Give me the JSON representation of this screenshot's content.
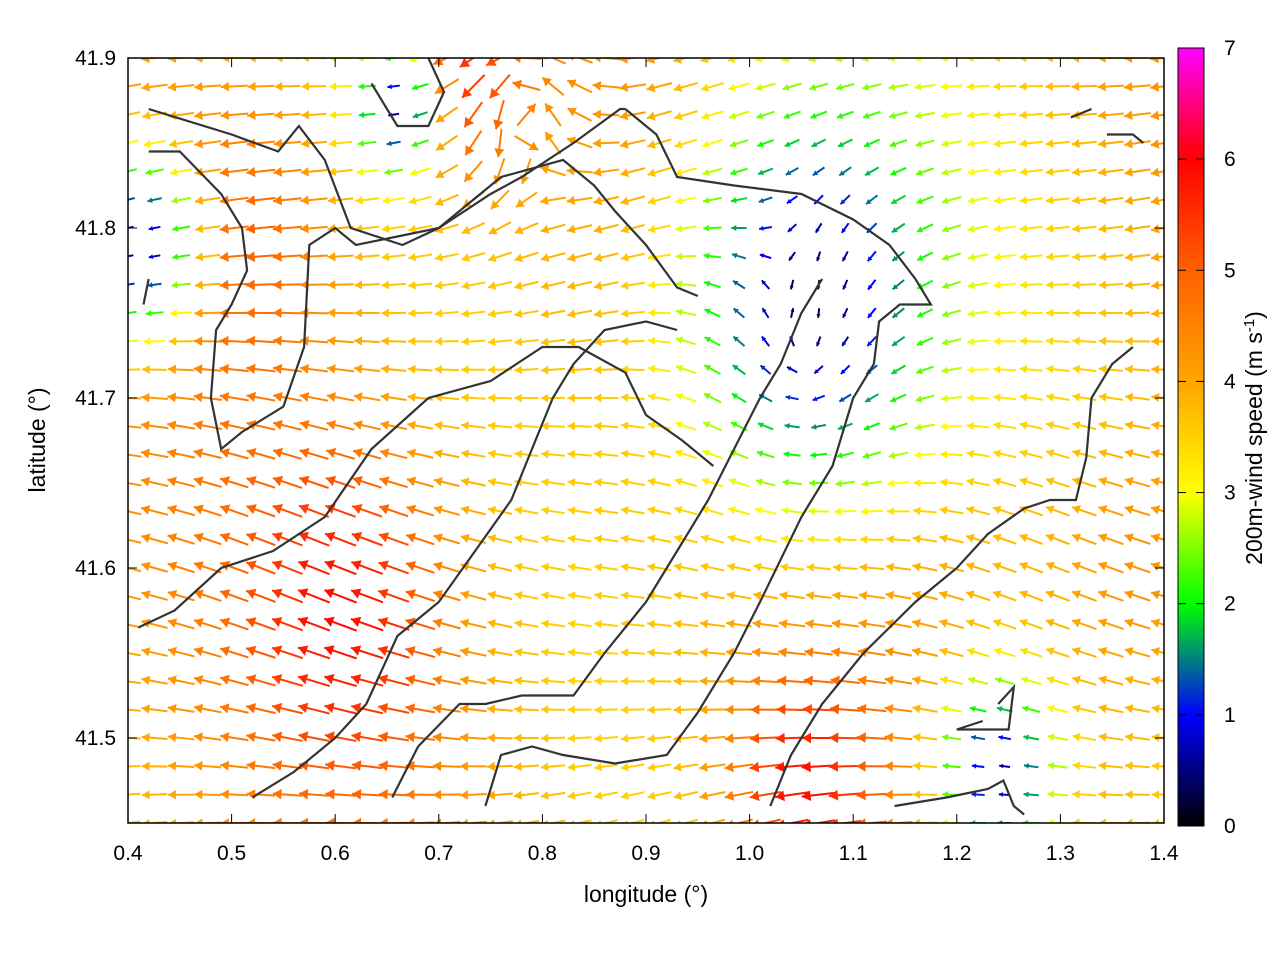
{
  "chart_data": {
    "type": "vector-field",
    "xlabel": "longitude (°)",
    "ylabel": "latitude (°)",
    "xlim": [
      0.4,
      1.4
    ],
    "ylim": [
      41.45,
      41.9
    ],
    "xticks": [
      {
        "v": 0.4,
        "label": "0.4"
      },
      {
        "v": 0.5,
        "label": "0.5"
      },
      {
        "v": 0.6,
        "label": "0.6"
      },
      {
        "v": 0.7,
        "label": "0.7"
      },
      {
        "v": 0.8,
        "label": "0.8"
      },
      {
        "v": 0.9,
        "label": "0.9"
      },
      {
        "v": 1.0,
        "label": "1.0"
      },
      {
        "v": 1.1,
        "label": "1.1"
      },
      {
        "v": 1.2,
        "label": "1.2"
      },
      {
        "v": 1.3,
        "label": "1.3"
      },
      {
        "v": 1.4,
        "label": "1.4"
      }
    ],
    "yticks": [
      {
        "v": 41.5,
        "label": "41.5"
      },
      {
        "v": 41.6,
        "label": "41.6"
      },
      {
        "v": 41.7,
        "label": "41.7"
      },
      {
        "v": 41.8,
        "label": "41.8"
      },
      {
        "v": 41.9,
        "label": "41.9"
      }
    ],
    "colorbar": {
      "label_main": "200m-wind speed (m s",
      "label_sup": "-1",
      "label_close": ")",
      "range": [
        0,
        7
      ],
      "ticks": [
        {
          "v": 0,
          "label": "0"
        },
        {
          "v": 1,
          "label": "1"
        },
        {
          "v": 2,
          "label": "2"
        },
        {
          "v": 3,
          "label": "3"
        },
        {
          "v": 4,
          "label": "4"
        },
        {
          "v": 5,
          "label": "5"
        },
        {
          "v": 6,
          "label": "6"
        },
        {
          "v": 7,
          "label": "7"
        }
      ],
      "stops": [
        {
          "v": 0.0,
          "color": "#000000"
        },
        {
          "v": 1.0,
          "color": "#0000ff"
        },
        {
          "v": 1.5,
          "color": "#008080"
        },
        {
          "v": 2.0,
          "color": "#00ff00"
        },
        {
          "v": 3.0,
          "color": "#ffff00"
        },
        {
          "v": 4.0,
          "color": "#ffa500"
        },
        {
          "v": 5.0,
          "color": "#ff6000"
        },
        {
          "v": 6.0,
          "color": "#ff0000"
        },
        {
          "v": 7.0,
          "color": "#ff00ff"
        }
      ]
    },
    "wind_grid": {
      "lon_start": 0.4,
      "lon_end": 1.4,
      "lon_count": 40,
      "lat_start": 41.45,
      "lat_end": 41.9,
      "lat_count": 28,
      "base_speed": 4.0,
      "cyclonic_centers": [
        {
          "lon": 0.78,
          "lat": 41.88,
          "strength": 2.5,
          "radius": 0.07
        },
        {
          "lon": 1.05,
          "lat": 41.72,
          "strength": -2.0,
          "radius": 0.12
        }
      ],
      "calm_zones": [
        {
          "lon": 1.06,
          "lat": 41.76,
          "radius": 0.13,
          "min": 0.3
        },
        {
          "lon": 0.41,
          "lat": 41.79,
          "radius": 0.06,
          "min": 0.5
        },
        {
          "lon": 1.24,
          "lat": 41.48,
          "radius": 0.06,
          "min": 0.6
        },
        {
          "lon": 0.66,
          "lat": 41.87,
          "radius": 0.04,
          "min": 0.6
        }
      ],
      "strong_zones": [
        {
          "lon": 0.62,
          "lat": 41.58,
          "radius": 0.1,
          "boost": 1.6
        },
        {
          "lon": 0.72,
          "lat": 41.89,
          "radius": 0.06,
          "boost": 1.8
        },
        {
          "lon": 1.05,
          "lat": 41.47,
          "radius": 0.07,
          "boost": 1.8
        },
        {
          "lon": 0.52,
          "lat": 41.8,
          "radius": 0.08,
          "boost": 1.0
        },
        {
          "lon": 1.38,
          "lat": 41.6,
          "radius": 0.08,
          "boost": 0.8
        }
      ]
    },
    "contours": [
      [
        [
          0.42,
          41.87
        ],
        [
          0.5,
          41.855
        ],
        [
          0.545,
          41.845
        ],
        [
          0.565,
          41.86
        ],
        [
          0.59,
          41.84
        ],
        [
          0.615,
          41.8
        ],
        [
          0.665,
          41.79
        ],
        [
          0.7,
          41.8
        ],
        [
          0.75,
          41.82
        ],
        [
          0.78,
          41.83
        ],
        [
          0.83,
          41.85
        ],
        [
          0.875,
          41.87
        ],
        [
          0.88,
          41.87
        ]
      ],
      [
        [
          0.88,
          41.87
        ],
        [
          0.91,
          41.855
        ],
        [
          0.93,
          41.83
        ],
        [
          0.985,
          41.825
        ],
        [
          1.05,
          41.82
        ],
        [
          1.1,
          41.805
        ],
        [
          1.135,
          41.79
        ],
        [
          1.16,
          41.77
        ],
        [
          1.175,
          41.755
        ],
        [
          1.145,
          41.755
        ],
        [
          1.125,
          41.745
        ],
        [
          1.12,
          41.72
        ]
      ],
      [
        [
          0.42,
          41.845
        ],
        [
          0.45,
          41.845
        ],
        [
          0.49,
          41.82
        ],
        [
          0.51,
          41.8
        ],
        [
          0.515,
          41.775
        ],
        [
          0.5,
          41.755
        ],
        [
          0.485,
          41.74
        ],
        [
          0.48,
          41.7
        ],
        [
          0.49,
          41.67
        ],
        [
          0.51,
          41.68
        ],
        [
          0.55,
          41.695
        ],
        [
          0.57,
          41.73
        ],
        [
          0.575,
          41.79
        ],
        [
          0.6,
          41.8
        ],
        [
          0.62,
          41.79
        ],
        [
          0.66,
          41.795
        ],
        [
          0.7,
          41.8
        ],
        [
          0.76,
          41.83
        ],
        [
          0.82,
          41.84
        ],
        [
          0.85,
          41.825
        ],
        [
          0.87,
          41.81
        ],
        [
          0.9,
          41.79
        ],
        [
          0.93,
          41.765
        ],
        [
          0.95,
          41.76
        ]
      ],
      [
        [
          0.635,
          41.885
        ],
        [
          0.66,
          41.86
        ],
        [
          0.69,
          41.86
        ],
        [
          0.705,
          41.88
        ],
        [
          0.69,
          41.9
        ]
      ],
      [
        [
          0.41,
          41.565
        ],
        [
          0.445,
          41.575
        ],
        [
          0.49,
          41.6
        ],
        [
          0.54,
          41.61
        ],
        [
          0.59,
          41.63
        ],
        [
          0.635,
          41.67
        ],
        [
          0.69,
          41.7
        ],
        [
          0.75,
          41.71
        ],
        [
          0.8,
          41.73
        ],
        [
          0.835,
          41.73
        ],
        [
          0.88,
          41.715
        ],
        [
          0.9,
          41.69
        ],
        [
          0.935,
          41.675
        ],
        [
          0.965,
          41.66
        ]
      ],
      [
        [
          0.52,
          41.465
        ],
        [
          0.56,
          41.48
        ],
        [
          0.6,
          41.5
        ],
        [
          0.63,
          41.52
        ],
        [
          0.66,
          41.56
        ],
        [
          0.7,
          41.58
        ],
        [
          0.735,
          41.61
        ],
        [
          0.77,
          41.64
        ],
        [
          0.79,
          41.67
        ],
        [
          0.81,
          41.7
        ],
        [
          0.83,
          41.72
        ],
        [
          0.86,
          41.74
        ],
        [
          0.9,
          41.745
        ],
        [
          0.93,
          41.74
        ]
      ],
      [
        [
          0.655,
          41.465
        ],
        [
          0.68,
          41.495
        ],
        [
          0.72,
          41.52
        ],
        [
          0.745,
          41.52
        ],
        [
          0.78,
          41.525
        ],
        [
          0.83,
          41.525
        ],
        [
          0.86,
          41.55
        ],
        [
          0.9,
          41.58
        ],
        [
          0.93,
          41.61
        ],
        [
          0.96,
          41.64
        ],
        [
          0.985,
          41.67
        ],
        [
          1.01,
          41.7
        ],
        [
          1.03,
          41.72
        ],
        [
          1.05,
          41.75
        ],
        [
          1.07,
          41.77
        ]
      ],
      [
        [
          0.745,
          41.46
        ],
        [
          0.76,
          41.49
        ],
        [
          0.79,
          41.495
        ],
        [
          0.82,
          41.49
        ],
        [
          0.87,
          41.485
        ],
        [
          0.92,
          41.49
        ],
        [
          0.95,
          41.515
        ],
        [
          0.985,
          41.55
        ],
        [
          1.01,
          41.58
        ],
        [
          1.05,
          41.63
        ],
        [
          1.08,
          41.66
        ],
        [
          1.1,
          41.7
        ],
        [
          1.12,
          41.72
        ]
      ],
      [
        [
          1.02,
          41.46
        ],
        [
          1.04,
          41.49
        ],
        [
          1.07,
          41.52
        ],
        [
          1.11,
          41.55
        ],
        [
          1.16,
          41.58
        ],
        [
          1.2,
          41.6
        ],
        [
          1.23,
          41.62
        ],
        [
          1.265,
          41.635
        ],
        [
          1.29,
          41.64
        ],
        [
          1.315,
          41.64
        ],
        [
          1.325,
          41.665
        ],
        [
          1.33,
          41.7
        ],
        [
          1.35,
          41.72
        ],
        [
          1.37,
          41.73
        ]
      ],
      [
        [
          1.24,
          41.52
        ],
        [
          1.255,
          41.53
        ],
        [
          1.25,
          41.505
        ],
        [
          1.22,
          41.505
        ],
        [
          1.2,
          41.505
        ],
        [
          1.225,
          41.51
        ]
      ],
      [
        [
          1.14,
          41.46
        ],
        [
          1.19,
          41.465
        ],
        [
          1.23,
          41.47
        ],
        [
          1.245,
          41.475
        ],
        [
          1.255,
          41.46
        ],
        [
          1.265,
          41.455
        ]
      ],
      [
        [
          1.345,
          41.855
        ],
        [
          1.37,
          41.855
        ],
        [
          1.38,
          41.85
        ]
      ],
      [
        [
          1.31,
          41.865
        ],
        [
          1.33,
          41.87
        ]
      ],
      [
        [
          0.415,
          41.755
        ],
        [
          0.42,
          41.77
        ]
      ]
    ]
  }
}
